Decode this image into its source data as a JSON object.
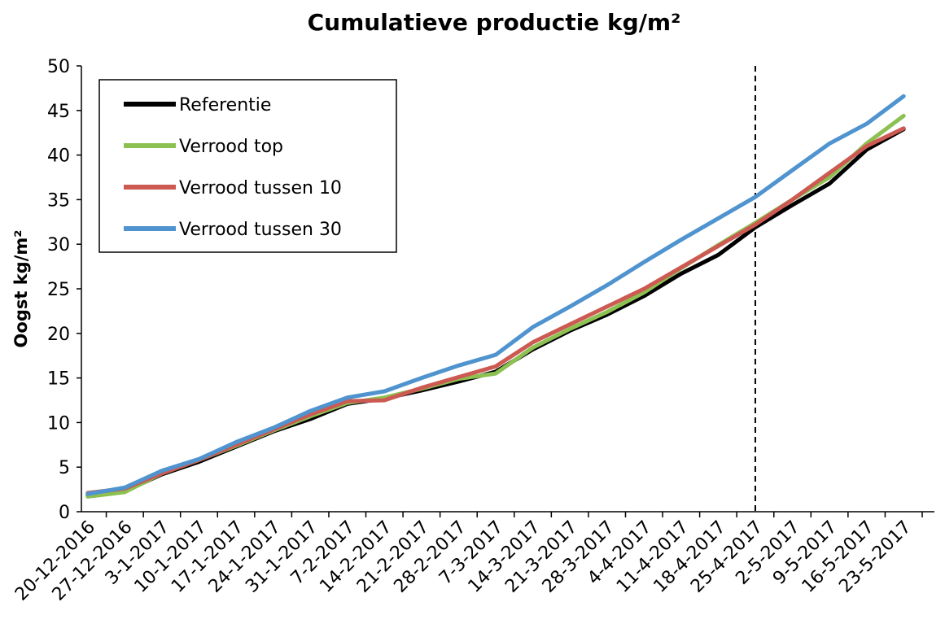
{
  "chart_data": {
    "type": "line",
    "title": "Cumulatieve productie kg/m²",
    "ylabel": "Oogst kg/m²",
    "xlabel": "",
    "ylim": [
      0,
      50
    ],
    "yticks": [
      0,
      5,
      10,
      15,
      20,
      25,
      30,
      35,
      40,
      45,
      50
    ],
    "categories": [
      "20-12-2016",
      "27-12-2016",
      "3-1-2017",
      "10-1-2017",
      "17-1-2017",
      "24-1-2017",
      "31-1-2017",
      "7-2-2017",
      "14-2-2017",
      "21-2-2017",
      "28-2-2017",
      "7-3-2017",
      "14-3-2017",
      "21-3-2017",
      "28-3-2017",
      "4-4-2017",
      "11-4-2017",
      "18-4-2017",
      "25-4-2017",
      "2-5-2017",
      "9-5-2017",
      "16-5-2017",
      "23-5-2017"
    ],
    "marker_line": {
      "category": "25-4-2017",
      "style": "dashed"
    },
    "grid": false,
    "legend_position": "top-left",
    "series": [
      {
        "name": "Referentie",
        "color": "#000000",
        "values": [
          1.8,
          2.3,
          4.2,
          5.6,
          7.3,
          9.0,
          10.4,
          12.1,
          12.7,
          13.6,
          14.6,
          15.7,
          18.2,
          20.3,
          22.1,
          24.2,
          26.7,
          28.8,
          31.9,
          34.4,
          36.8,
          40.6,
          42.9
        ]
      },
      {
        "name": "Verrood top",
        "color": "#8cc152",
        "values": [
          1.7,
          2.2,
          4.3,
          5.8,
          7.4,
          9.1,
          10.7,
          12.2,
          12.8,
          13.8,
          14.9,
          15.5,
          18.4,
          20.5,
          22.4,
          24.6,
          27.3,
          29.9,
          32.4,
          35.0,
          37.5,
          41.3,
          44.4
        ]
      },
      {
        "name": "Verrood tussen 10",
        "color": "#cc5a52",
        "values": [
          2.1,
          2.6,
          4.3,
          5.8,
          7.5,
          9.2,
          10.9,
          12.4,
          12.5,
          13.9,
          15.1,
          16.3,
          19.0,
          21.0,
          23.0,
          25.0,
          27.4,
          29.8,
          32.2,
          35.0,
          38.0,
          41.0,
          43.0
        ]
      },
      {
        "name": "Verrood tussen 30",
        "color": "#4f93cf",
        "values": [
          2.0,
          2.7,
          4.6,
          5.9,
          7.8,
          9.4,
          11.3,
          12.8,
          13.5,
          15.0,
          16.4,
          17.6,
          20.7,
          23.0,
          25.4,
          28.0,
          30.5,
          32.9,
          35.3,
          38.3,
          41.3,
          43.5,
          46.6
        ]
      }
    ]
  }
}
